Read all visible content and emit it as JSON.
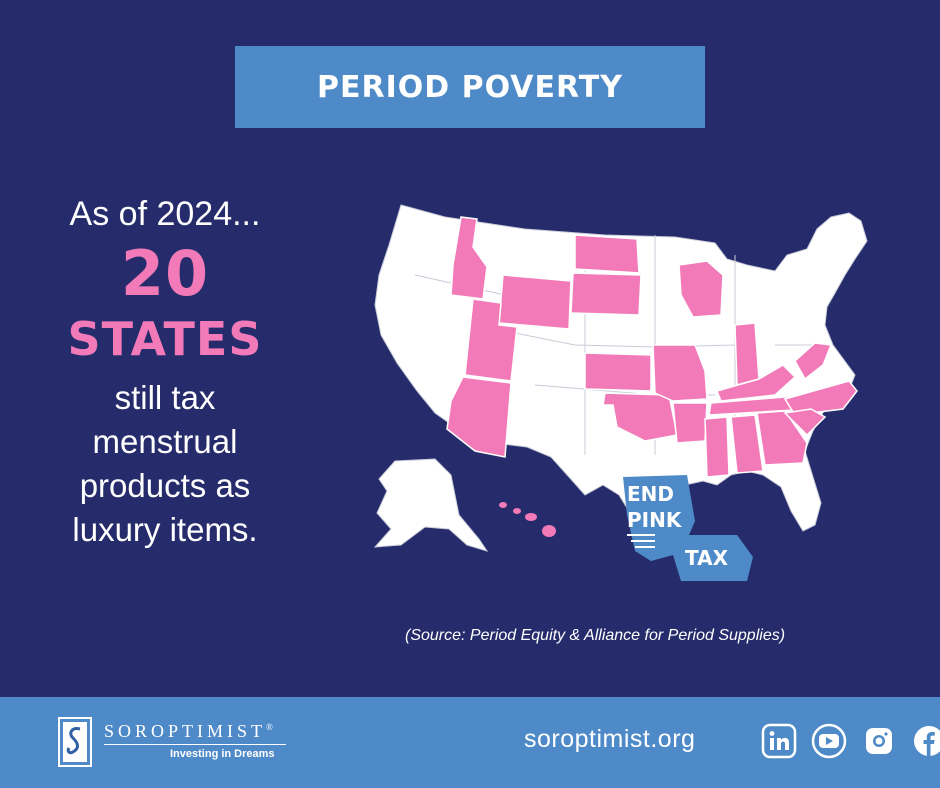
{
  "header": {
    "title": "PERIOD POVERTY"
  },
  "left": {
    "intro": "As of 2024...",
    "number": "20",
    "unit": "STATES",
    "line1": "still tax",
    "line2": "menstrual",
    "line3": "products as",
    "line4": "luxury items."
  },
  "map": {
    "sticker_line1": "END",
    "sticker_line2": "PINK",
    "sticker_line3": "TAX",
    "colors": {
      "taxed": "#f37ab8",
      "untaxed": "#ffffff",
      "sticker": "#4f8ac8"
    }
  },
  "source": "(Source: Period Equity & Alliance for Period Supplies)",
  "footer": {
    "logo_name": "SOROPTIMIST",
    "logo_registered": "®",
    "logo_tagline": "Investing in Dreams",
    "website": "soroptimist.org"
  },
  "social": {
    "icons": [
      "linkedin-icon",
      "youtube-icon",
      "instagram-icon",
      "facebook-icon"
    ]
  },
  "colors": {
    "background": "#262c6b",
    "accent_blue": "#4f8ac8",
    "pink": "#f37ab8"
  }
}
